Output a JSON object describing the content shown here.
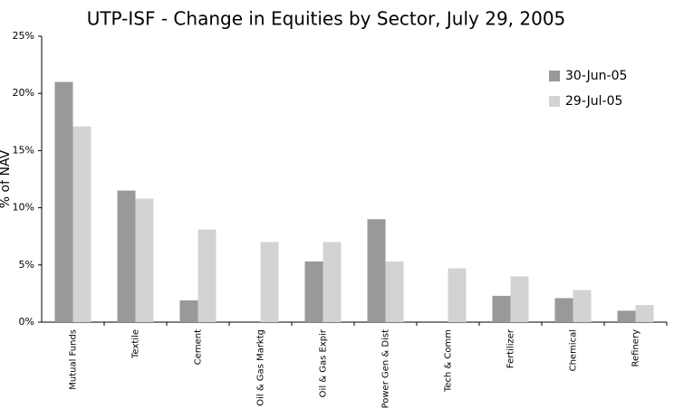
{
  "chart_data": {
    "type": "bar",
    "title": "UTP-ISF - Change in Equities by Sector, July 29, 2005",
    "ylabel": "% of NAV",
    "categories": [
      "Mutual Funds",
      "Textile",
      "Cement",
      "Oil & Gas Marktg",
      "Oil & Gas Expir",
      "Power Gen & Dist",
      "Tech & Comm",
      "Fertilizer",
      "Chemical",
      "Refinery"
    ],
    "series": [
      {
        "name": "30-Jun-05",
        "color": "#999999",
        "values": [
          21.0,
          11.5,
          1.9,
          0,
          5.3,
          9.0,
          0,
          2.3,
          2.1,
          1.0
        ]
      },
      {
        "name": "29-Jul-05",
        "color": "#d3d3d3",
        "values": [
          17.1,
          10.8,
          8.1,
          7.0,
          7.0,
          5.3,
          4.7,
          4.0,
          2.8,
          1.5
        ]
      }
    ],
    "ylim": [
      0,
      25
    ],
    "yticks": [
      {
        "value": 0,
        "label": "0%"
      },
      {
        "value": 5,
        "label": "5%"
      },
      {
        "value": 10,
        "label": "10%"
      },
      {
        "value": 15,
        "label": "15%"
      },
      {
        "value": 20,
        "label": "20%"
      },
      {
        "value": 25,
        "label": "25%"
      }
    ],
    "legend": "upper right"
  }
}
